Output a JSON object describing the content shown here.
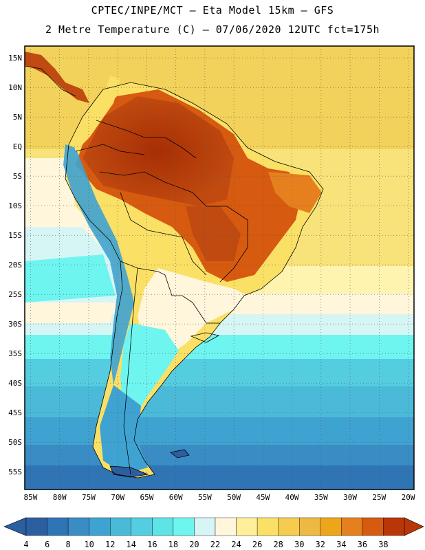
{
  "header": {
    "line1": "CPTEC/INPE/MCT –  Eta Model 15km – GFS",
    "line2": "2 Metre Temperature (C) – 07/06/2020 12UTC fct=175h"
  },
  "map": {
    "lat_labels": [
      "15N",
      "10N",
      "5N",
      "EQ",
      "5S",
      "10S",
      "15S",
      "20S",
      "25S",
      "30S",
      "35S",
      "40S",
      "45S",
      "50S",
      "55S"
    ],
    "lat_values": [
      15,
      10,
      5,
      0,
      -5,
      -10,
      -15,
      -20,
      -25,
      -30,
      -35,
      -40,
      -45,
      -50,
      -55
    ],
    "lon_labels": [
      "85W",
      "80W",
      "75W",
      "70W",
      "65W",
      "60W",
      "55W",
      "50W",
      "45W",
      "40W",
      "35W",
      "30W",
      "25W",
      "20W"
    ],
    "lon_values": [
      -85,
      -80,
      -75,
      -70,
      -65,
      -60,
      -55,
      -50,
      -45,
      -40,
      -35,
      -30,
      -25,
      -20
    ],
    "extent": {
      "lon_min": -86,
      "lon_max": -19,
      "lat_min": -58,
      "lat_max": 17
    }
  },
  "colorbar": {
    "labels": [
      "4",
      "6",
      "8",
      "10",
      "12",
      "14",
      "16",
      "18",
      "20",
      "22",
      "24",
      "26",
      "28",
      "30",
      "32",
      "34",
      "36",
      "38"
    ],
    "colors": [
      "#2c5fa0",
      "#2f74b5",
      "#3a8cc4",
      "#3fa3d1",
      "#4bbad9",
      "#55cde0",
      "#5ee3e6",
      "#6ff5f0",
      "#d6f5f5",
      "#fff6dc",
      "#ffef9a",
      "#fbe066",
      "#f5cc50",
      "#eeb942",
      "#eea51a",
      "#e6801e",
      "#d65a0f",
      "#b83608"
    ]
  }
}
